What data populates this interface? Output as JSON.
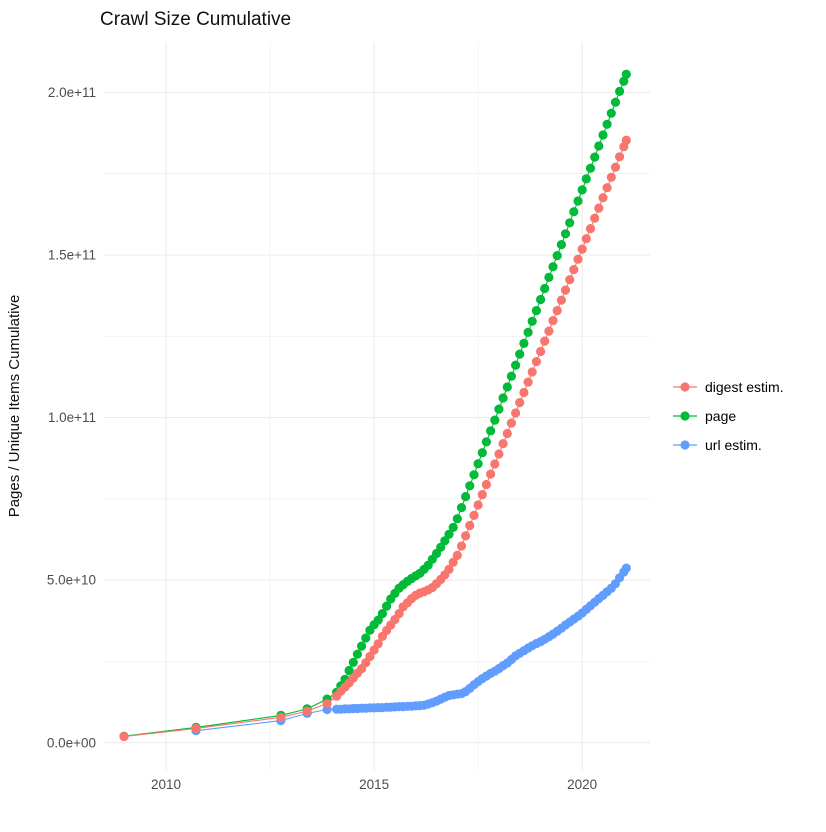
{
  "title": "Crawl Size Cumulative",
  "colors": {
    "digest": "#F8766D",
    "page": "#00BA38",
    "url": "#619CFF",
    "gridline": "#EBEBEB",
    "tick_text": "#4d4d4d",
    "title_text": "#111111"
  },
  "chart_data": {
    "type": "scatter",
    "title": "Crawl Size Cumulative",
    "xlabel": "",
    "ylabel": "Pages / Unique Items Cumulative",
    "value_unit": "billions (1e9) of pages / unique items",
    "xlim": [
      2008.51,
      2021.63
    ],
    "ylim_e9": [
      -8.4,
      215.5
    ],
    "grid": true,
    "legend_position": "right",
    "x_ticks": {
      "values": [
        2010,
        2015,
        2020
      ],
      "labels": [
        "2010",
        "2015",
        "2020"
      ]
    },
    "x_minor": [
      2012.5,
      2017.5
    ],
    "y_ticks": {
      "values_e9": [
        0,
        50,
        100,
        150,
        200
      ],
      "labels": [
        "0.0e+00",
        "5.0e+10",
        "1.0e+11",
        "1.5e+11",
        "2.0e+11"
      ]
    },
    "y_minor_e9": [
      25,
      75,
      125,
      175
    ],
    "draw_order": [
      1,
      2,
      0
    ],
    "series": [
      {
        "name": "digest estim.",
        "color": "#F8766D",
        "sparse_points": [
          [
            2008.99,
            1.9
          ],
          [
            2010.72,
            4.4
          ],
          [
            2012.76,
            7.8
          ],
          [
            2013.39,
            9.7
          ],
          [
            2013.87,
            12.0
          ]
        ],
        "dense": {
          "start_year": 2014.1,
          "step": 0.1,
          "values_e9": [
            14.3,
            15.8,
            17.1,
            18.4,
            19.9,
            21.4,
            22.8,
            24.6,
            26.5,
            28.5,
            30.4,
            32.7,
            34.5,
            36.2,
            37.9,
            39.7,
            41.8,
            43.0,
            44.3,
            45.3,
            46.0,
            46.4,
            47.0,
            47.7,
            48.9,
            50.2,
            51.6,
            53.3,
            55.5,
            57.6,
            60.5,
            63.6,
            66.8,
            69.9,
            73.1,
            76.3,
            79.4,
            82.6,
            85.7,
            88.8,
            92.0,
            95.1,
            98.3,
            101.4,
            104.6,
            107.7,
            110.9,
            114.0,
            117.2,
            120.3,
            123.5,
            126.6,
            129.8,
            132.9,
            136.1,
            139.2,
            142.4,
            145.5,
            148.7,
            151.8,
            155.0,
            158.1,
            161.3,
            164.4,
            167.6,
            170.7,
            173.9,
            177.0,
            180.2,
            183.3
          ]
        },
        "end_point": [
          2021.06,
          185.3
        ]
      },
      {
        "name": "page",
        "color": "#00BA38",
        "sparse_points": [
          [
            2008.99,
            2.0
          ],
          [
            2010.72,
            4.7
          ],
          [
            2012.76,
            8.4
          ],
          [
            2013.39,
            10.4
          ],
          [
            2013.87,
            13.4
          ]
        ],
        "dense": {
          "start_year": 2014.1,
          "step": 0.1,
          "values_e9": [
            15.5,
            17.5,
            19.5,
            22.2,
            24.7,
            27.2,
            29.7,
            32.2,
            34.6,
            36.3,
            37.7,
            39.7,
            42.0,
            44.2,
            45.9,
            47.5,
            48.6,
            49.6,
            50.5,
            51.3,
            52.1,
            53.3,
            54.6,
            56.4,
            58.2,
            60.1,
            62.1,
            64.1,
            66.2,
            68.9,
            72.3,
            75.7,
            79.0,
            82.4,
            85.8,
            89.2,
            92.5,
            95.9,
            99.2,
            102.6,
            106.0,
            109.4,
            112.7,
            116.1,
            119.5,
            122.8,
            126.2,
            129.6,
            132.9,
            136.3,
            139.7,
            143.1,
            146.4,
            149.8,
            153.2,
            156.5,
            159.9,
            163.3,
            166.6,
            170.0,
            173.4,
            176.7,
            180.1,
            183.5,
            186.9,
            190.2,
            193.6,
            197.0,
            200.3,
            203.4
          ]
        },
        "end_point": [
          2021.06,
          205.6
        ]
      },
      {
        "name": "url estim.",
        "color": "#619CFF",
        "sparse_points": [
          [
            2010.72,
            3.7
          ],
          [
            2012.76,
            6.8
          ],
          [
            2013.39,
            9.0
          ],
          [
            2013.87,
            10.2
          ]
        ],
        "dense": {
          "start_year": 2014.1,
          "step": 0.1,
          "values_e9": [
            10.3,
            10.3,
            10.4,
            10.4,
            10.5,
            10.5,
            10.6,
            10.6,
            10.7,
            10.7,
            10.8,
            10.8,
            10.9,
            10.9,
            11.0,
            11.1,
            11.1,
            11.2,
            11.2,
            11.3,
            11.4,
            11.5,
            11.9,
            12.3,
            12.8,
            13.4,
            14.0,
            14.5,
            14.7,
            14.9,
            15.1,
            15.7,
            16.7,
            17.8,
            18.8,
            19.7,
            20.5,
            21.3,
            22.0,
            22.8,
            23.7,
            24.5,
            25.6,
            26.7,
            27.5,
            28.3,
            29.1,
            29.8,
            30.5,
            31.1,
            31.8,
            32.6,
            33.4,
            34.3,
            35.2,
            36.2,
            37.1,
            38.0,
            38.9,
            39.9,
            41.0,
            42.1,
            43.2,
            44.3,
            45.3,
            46.4,
            47.5,
            48.9,
            50.7,
            52.5
          ]
        },
        "end_point": [
          2021.06,
          53.7
        ]
      }
    ]
  }
}
